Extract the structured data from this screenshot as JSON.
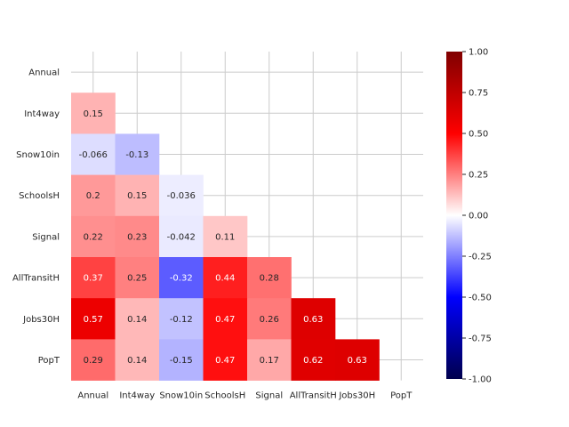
{
  "chart_data": {
    "type": "heatmap",
    "variables": [
      "Annual",
      "Int4way",
      "Snow10in",
      "SchoolsH",
      "Signal",
      "AllTransitH",
      "Jobs30H",
      "PopT"
    ],
    "matrix_lower": [
      [],
      [
        0.15
      ],
      [
        -0.066,
        -0.13
      ],
      [
        0.2,
        0.15,
        -0.036
      ],
      [
        0.22,
        0.23,
        -0.042,
        0.11
      ],
      [
        0.37,
        0.25,
        -0.32,
        0.44,
        0.28
      ],
      [
        0.57,
        0.14,
        -0.12,
        0.47,
        0.26,
        0.63
      ],
      [
        0.29,
        0.14,
        -0.15,
        0.47,
        0.17,
        0.62,
        0.63
      ]
    ],
    "labels_lower": [
      [],
      [
        "0.15"
      ],
      [
        "-0.066",
        "-0.13"
      ],
      [
        "0.2",
        "0.15",
        "-0.036"
      ],
      [
        "0.22",
        "0.23",
        "-0.042",
        "0.11"
      ],
      [
        "0.37",
        "0.25",
        "-0.32",
        "0.44",
        "0.28"
      ],
      [
        "0.57",
        "0.14",
        "-0.12",
        "0.47",
        "0.26",
        "0.63"
      ],
      [
        "0.29",
        "0.14",
        "-0.15",
        "0.47",
        "0.17",
        "0.62",
        "0.63"
      ]
    ],
    "mask": "upper-triangle-and-diagonal",
    "colormap": "seismic",
    "vmin": -1.0,
    "vmax": 1.0,
    "colorbar_ticks": [
      "-1.00",
      "-0.75",
      "-0.50",
      "-0.25",
      "0.00",
      "0.25",
      "0.50",
      "0.75",
      "1.00"
    ],
    "grid": true,
    "title": "",
    "xlabel": "",
    "ylabel": ""
  }
}
